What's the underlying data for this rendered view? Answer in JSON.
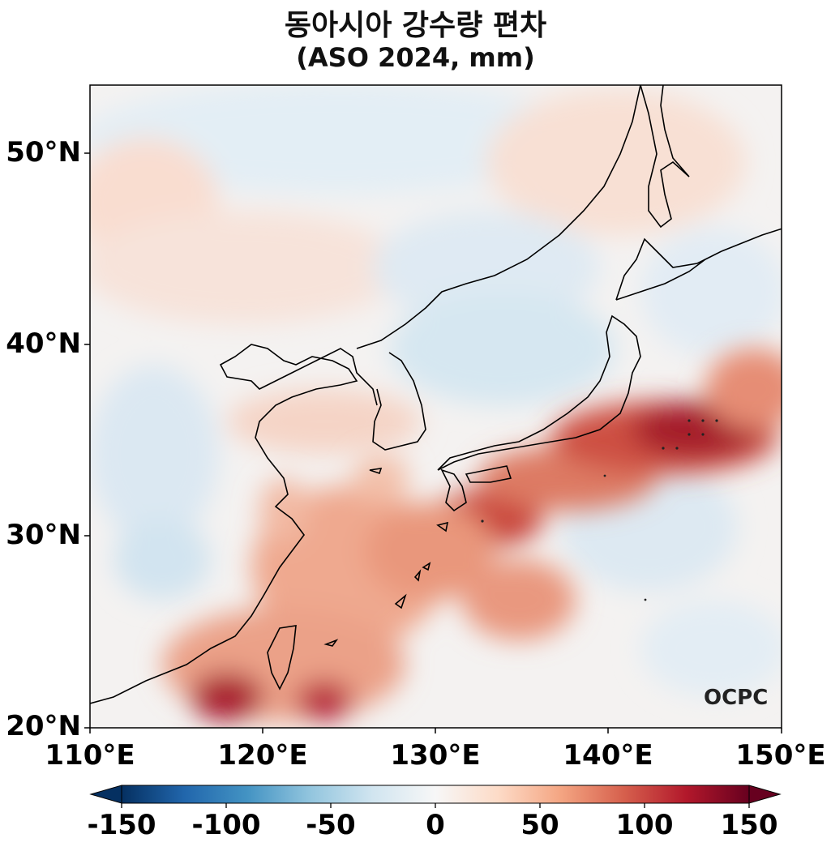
{
  "title": "동아시아 강수량 편차",
  "subtitle": "(ASO 2024, mm)",
  "map": {
    "lon_range": [
      110,
      150
    ],
    "lat_range": [
      20,
      53.5
    ],
    "lat_ticks": [
      {
        "value": 20,
        "label": "20°N"
      },
      {
        "value": 30,
        "label": "30°N"
      },
      {
        "value": 40,
        "label": "40°N"
      },
      {
        "value": 50,
        "label": "50°N"
      }
    ],
    "lon_ticks": [
      {
        "value": 110,
        "label": "110°E"
      },
      {
        "value": 120,
        "label": "120°E"
      },
      {
        "value": 130,
        "label": "130°E"
      },
      {
        "value": 140,
        "label": "140°E"
      },
      {
        "value": 150,
        "label": "150°E"
      }
    ]
  },
  "colorbar": {
    "min": -150,
    "max": 150,
    "colormap": "RdBu_r",
    "ticks": [
      {
        "value": -150,
        "label": "-150"
      },
      {
        "value": -100,
        "label": "-100"
      },
      {
        "value": -50,
        "label": "-50"
      },
      {
        "value": 0,
        "label": "0"
      },
      {
        "value": 50,
        "label": "50"
      },
      {
        "value": 100,
        "label": "100"
      },
      {
        "value": 150,
        "label": "150"
      }
    ],
    "colors": [
      "#053061",
      "#2166ac",
      "#4393c3",
      "#92c5de",
      "#d1e5f0",
      "#f7f7f7",
      "#fddbc7",
      "#f4a582",
      "#d6604d",
      "#b2182b",
      "#67001f"
    ]
  },
  "logo": "OCPC"
}
